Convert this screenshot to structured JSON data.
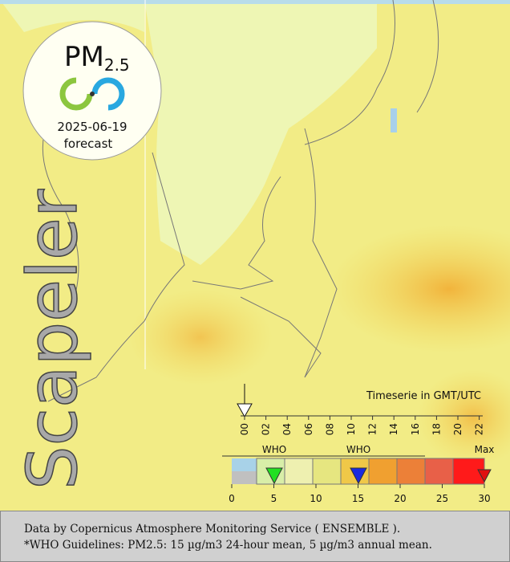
{
  "badge": {
    "title": "PM",
    "subscript": "2.5",
    "date": "2025-06-19",
    "label": "forecast"
  },
  "watermark": "Scapeler",
  "timeline": {
    "title": "Timeserie in GMT/UTC",
    "hours": [
      "00",
      "02",
      "04",
      "06",
      "08",
      "10",
      "12",
      "14",
      "16",
      "18",
      "20",
      "22"
    ]
  },
  "legend": {
    "markers": [
      "WHO",
      "WHO",
      "Max"
    ],
    "ticks": [
      0,
      5,
      10,
      15,
      20,
      25,
      30
    ]
  },
  "footer": [
    "Data by Copernicus Atmosphere Monitoring Service ( ENSEMBLE ).",
    "*WHO Guidelines: PM2.5: 15 µg/m3 24-hour mean, 5 µg/m3 annual mean."
  ]
}
